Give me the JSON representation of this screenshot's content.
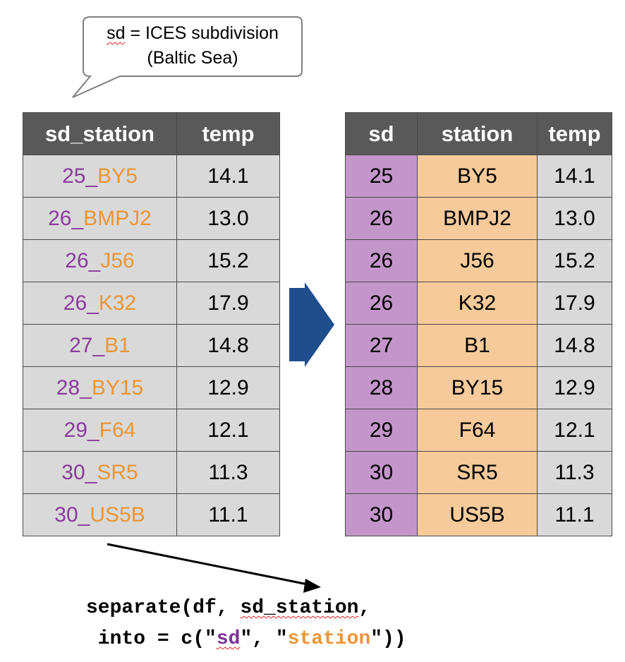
{
  "callout": {
    "sd_abbrev": "sd",
    "definition": " = ICES subdivision",
    "line2": "(Baltic Sea)"
  },
  "left_table": {
    "headers": [
      "sd_station",
      "temp"
    ],
    "rows": [
      {
        "sd": "25",
        "sep": "_",
        "station": "BY5",
        "temp": "14.1"
      },
      {
        "sd": "26",
        "sep": "_",
        "station": "BMPJ2",
        "temp": "13.0"
      },
      {
        "sd": "26",
        "sep": "_",
        "station": "J56",
        "temp": "15.2"
      },
      {
        "sd": "26",
        "sep": "_",
        "station": "K32",
        "temp": "17.9"
      },
      {
        "sd": "27",
        "sep": "_",
        "station": "B1",
        "temp": "14.8"
      },
      {
        "sd": "28",
        "sep": "_",
        "station": "BY15",
        "temp": "12.9"
      },
      {
        "sd": "29",
        "sep": "_",
        "station": "F64",
        "temp": "12.1"
      },
      {
        "sd": "30",
        "sep": "_",
        "station": "SR5",
        "temp": "11.3"
      },
      {
        "sd": "30",
        "sep": "_",
        "station": "US5B",
        "temp": "11.1"
      }
    ]
  },
  "right_table": {
    "headers": [
      "sd",
      "station",
      "temp"
    ],
    "rows": [
      {
        "sd": "25",
        "station": "BY5",
        "temp": "14.1"
      },
      {
        "sd": "26",
        "station": "BMPJ2",
        "temp": "13.0"
      },
      {
        "sd": "26",
        "station": "J56",
        "temp": "15.2"
      },
      {
        "sd": "26",
        "station": "K32",
        "temp": "17.9"
      },
      {
        "sd": "27",
        "station": "B1",
        "temp": "14.8"
      },
      {
        "sd": "28",
        "station": "BY15",
        "temp": "12.9"
      },
      {
        "sd": "29",
        "station": "F64",
        "temp": "12.1"
      },
      {
        "sd": "30",
        "station": "SR5",
        "temp": "11.3"
      },
      {
        "sd": "30",
        "station": "US5B",
        "temp": "11.1"
      }
    ]
  },
  "code": {
    "fn_open": "separate(df, ",
    "arg_col": "sd_station",
    "comma": ",",
    "into_prefix": " into = c(\"",
    "into_sd": "sd",
    "mid": "\", \"",
    "into_station": "station",
    "close": "\"))"
  },
  "colors": {
    "header_bg": "#595959",
    "cell_grey": "#d9d9d9",
    "sd_purple": "#c396c9",
    "station_orange": "#f6ca9a",
    "text_purple": "#8a3a9e",
    "text_orange": "#ec9535",
    "arrow_blue": "#1f4e8c"
  },
  "icons": {
    "transform_arrow": "right-arrow-icon",
    "code_arrow": "pointer-arrow-icon"
  }
}
